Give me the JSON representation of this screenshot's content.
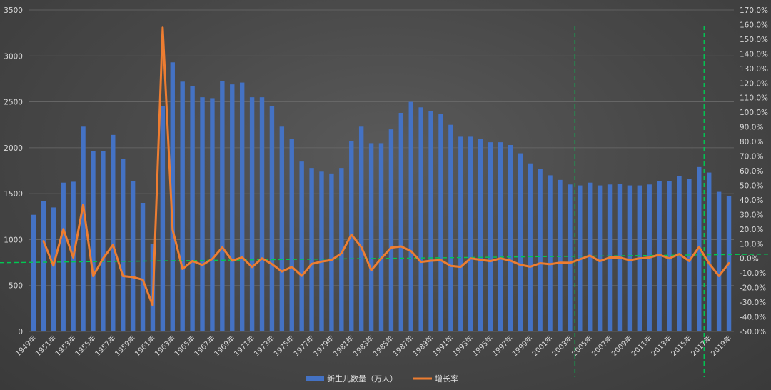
{
  "chart_data": {
    "type": "bar+line",
    "categories": [
      "1949年",
      "1950年",
      "1951年",
      "1952年",
      "1953年",
      "1954年",
      "1955年",
      "1956年",
      "1957年",
      "1958年",
      "1959年",
      "1960年",
      "1961年",
      "1962年",
      "1963年",
      "1964年",
      "1965年",
      "1966年",
      "1967年",
      "1968年",
      "1969年",
      "1970年",
      "1971年",
      "1972年",
      "1973年",
      "1974年",
      "1975年",
      "1976年",
      "1977年",
      "1978年",
      "1979年",
      "1980年",
      "1981年",
      "1982年",
      "1983年",
      "1984年",
      "1985年",
      "1986年",
      "1987年",
      "1988年",
      "1989年",
      "1990年",
      "1991年",
      "1992年",
      "1993年",
      "1994年",
      "1995年",
      "1996年",
      "1997年",
      "1998年",
      "1999年",
      "2000年",
      "2001年",
      "2002年",
      "2003年",
      "2004年",
      "2005年",
      "2006年",
      "2007年",
      "2008年",
      "2009年",
      "2010年",
      "2011年",
      "2012年",
      "2013年",
      "2014年",
      "2015年",
      "2016年",
      "2017年",
      "2018年",
      "2019年"
    ],
    "x_tick_labels": [
      "1949年",
      "1951年",
      "1953年",
      "1955年",
      "1957年",
      "1959年",
      "1961年",
      "1963年",
      "1965年",
      "1967年",
      "1969年",
      "1971年",
      "1973年",
      "1975年",
      "1977年",
      "1979年",
      "1981年",
      "1983年",
      "1985年",
      "1987年",
      "1989年",
      "1991年",
      "1993年",
      "1995年",
      "1997年",
      "1999年",
      "2001年",
      "2003年",
      "2005年",
      "2007年",
      "2009年",
      "2011年",
      "2013年",
      "2015年",
      "2017年",
      "2019年"
    ],
    "series": [
      {
        "name": "新生儿数量（万人）",
        "type": "bar",
        "axis": "left",
        "color": "#4472c4",
        "values": [
          1270,
          1420,
          1350,
          1620,
          1630,
          2230,
          1960,
          1960,
          2140,
          1880,
          1640,
          1400,
          950,
          2450,
          2930,
          2720,
          2670,
          2550,
          2540,
          2730,
          2690,
          2710,
          2550,
          2550,
          2450,
          2230,
          2100,
          1850,
          1780,
          1740,
          1720,
          1780,
          2070,
          2230,
          2050,
          2050,
          2200,
          2380,
          2500,
          2440,
          2400,
          2370,
          2250,
          2120,
          2120,
          2100,
          2060,
          2060,
          2030,
          1940,
          1830,
          1770,
          1700,
          1650,
          1600,
          1590,
          1620,
          1590,
          1600,
          1610,
          1590,
          1590,
          1600,
          1640,
          1640,
          1690,
          1660,
          1790,
          1730,
          1520,
          1470
        ]
      },
      {
        "name": "增长率",
        "type": "line",
        "axis": "right",
        "color": "#ed7d31",
        "values": [
          null,
          11.8,
          -4.9,
          20.0,
          0.6,
          36.8,
          -12.1,
          0.0,
          9.2,
          -12.1,
          -12.8,
          -14.6,
          -32.1,
          157.9,
          19.6,
          -7.2,
          -1.8,
          -4.5,
          -0.4,
          7.5,
          -1.5,
          0.7,
          -5.9,
          0.0,
          -3.9,
          -9.0,
          -5.8,
          -11.9,
          -3.8,
          -2.2,
          -1.1,
          3.5,
          16.3,
          7.7,
          -8.1,
          0.0,
          7.3,
          8.2,
          5.0,
          -2.4,
          -1.6,
          -1.2,
          -5.1,
          -5.8,
          0.0,
          -0.9,
          -1.9,
          0.0,
          -1.5,
          -4.4,
          -5.7,
          -3.3,
          -4.0,
          -2.9,
          -3.0,
          -0.6,
          1.9,
          -1.9,
          0.6,
          0.6,
          -1.2,
          0.0,
          0.6,
          2.5,
          0.0,
          3.0,
          -1.8,
          7.8,
          -3.4,
          -12.1,
          -3.3
        ]
      }
    ],
    "y_left": {
      "min": 0,
      "max": 3500,
      "ticks": [
        "0",
        "500",
        "1000",
        "1500",
        "2000",
        "2500",
        "3000",
        "3500"
      ]
    },
    "y_right": {
      "min": -50,
      "max": 170,
      "step": 10,
      "format": "0.0%"
    },
    "reference_lines": {
      "horizontal_zero_right_axis": 0,
      "vertical_at_categories": [
        "2003年",
        "2016年"
      ],
      "color": "#00c853"
    },
    "legend": {
      "position": "bottom-center",
      "labels": [
        "新生儿数量（万人）",
        "增长率"
      ]
    },
    "grid": true
  }
}
